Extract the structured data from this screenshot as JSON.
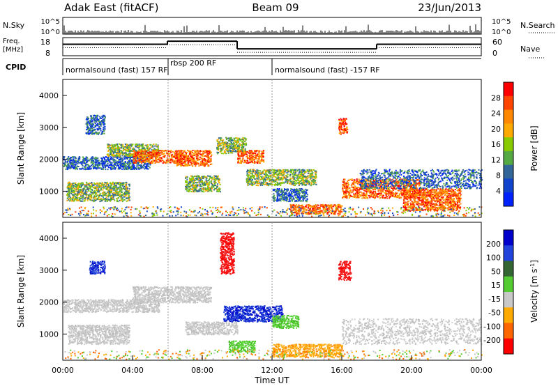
{
  "header": {
    "title": "Adak East (fitACF)",
    "beam": "Beam 09",
    "date": "23/Jun/2013"
  },
  "panels": {
    "nsky": {
      "label": "N.Sky",
      "right_label": "N.Search",
      "ticks_left": [
        "10^5",
        "10^0"
      ],
      "ticks_right": [
        "10^5",
        "10^0"
      ]
    },
    "freq": {
      "label_line1": "Freq.",
      "label_line2": "[MHz]",
      "right_label": "Nave",
      "ticks_left": [
        "18",
        "8"
      ],
      "ticks_right": [
        "60",
        "0"
      ],
      "freq_segments": [
        {
          "start": 0,
          "end": 6,
          "mhz": 15.5
        },
        {
          "start": 6,
          "end": 10,
          "mhz": 17.5
        },
        {
          "start": 10,
          "end": 18,
          "mhz": 12.5
        },
        {
          "start": 18,
          "end": 24,
          "mhz": 15.5
        }
      ]
    },
    "cpid": {
      "label": "CPID",
      "segments": [
        {
          "text": "normalsound (fast) 157 RF",
          "start": 0,
          "end": 6
        },
        {
          "text": "rbsp 200 RF",
          "start": 6,
          "end": 12
        },
        {
          "text": "normalsound (fast) -157 RF",
          "start": 12,
          "end": 24
        }
      ]
    }
  },
  "axes": {
    "x_ticks": [
      "00:00",
      "04:00",
      "08:00",
      "12:00",
      "16:00",
      "20:00",
      "00:00"
    ],
    "x_label": "Time UT",
    "y_label": "Slant Range [km]",
    "y_ticks": [
      "4000",
      "3000",
      "2000",
      "1000"
    ],
    "y_range_km": [
      180,
      4500
    ]
  },
  "power_scale": {
    "label": "Power [dB]",
    "ticks": [
      "28",
      "24",
      "20",
      "16",
      "12",
      "8",
      "4"
    ],
    "colors": [
      "#ff0000",
      "#ff4400",
      "#ff8800",
      "#ffaa00",
      "#88cc00",
      "#55aa44",
      "#336699",
      "#1144cc",
      "#0022ff"
    ]
  },
  "velocity_scale": {
    "label": "Velocity [m s",
    "label_sup": "-1",
    "label_end": "]",
    "ticks": [
      "200",
      "100",
      "50",
      "15",
      "-15",
      "-50",
      "-100",
      "-200"
    ],
    "colors": [
      "#0000cc",
      "#2244dd",
      "#336633",
      "#55cc33",
      "#c8c8c8",
      "#ffaa00",
      "#ff6600",
      "#ff0000"
    ]
  },
  "chart_data": {
    "type": "heatmap",
    "x_range_hours": [
      0,
      24
    ],
    "y_range_km": [
      180,
      4500
    ],
    "power_regions": [
      {
        "t0": 0.0,
        "t1": 5.0,
        "r0": 1700,
        "r1": 2100,
        "level": "low"
      },
      {
        "t0": 0.2,
        "t1": 3.8,
        "r0": 700,
        "r1": 1300,
        "level": "mid"
      },
      {
        "t0": 1.3,
        "t1": 2.4,
        "r0": 2800,
        "r1": 3400,
        "level": "low"
      },
      {
        "t0": 2.5,
        "t1": 5.5,
        "r0": 2100,
        "r1": 2500,
        "level": "mid"
      },
      {
        "t0": 4.0,
        "t1": 6.8,
        "r0": 1900,
        "r1": 2300,
        "level": "high"
      },
      {
        "t0": 6.5,
        "t1": 8.5,
        "r0": 1800,
        "r1": 2300,
        "level": "high"
      },
      {
        "t0": 7.0,
        "t1": 9.0,
        "r0": 1000,
        "r1": 1500,
        "level": "mid"
      },
      {
        "t0": 8.8,
        "t1": 10.5,
        "r0": 2200,
        "r1": 2700,
        "level": "mid"
      },
      {
        "t0": 10.0,
        "t1": 11.5,
        "r0": 1900,
        "r1": 2300,
        "level": "high"
      },
      {
        "t0": 10.5,
        "t1": 14.5,
        "r0": 1200,
        "r1": 1700,
        "level": "mid"
      },
      {
        "t0": 12.0,
        "t1": 14.0,
        "r0": 700,
        "r1": 1100,
        "level": "low"
      },
      {
        "t0": 13.0,
        "t1": 16.0,
        "r0": 300,
        "r1": 600,
        "level": "high"
      },
      {
        "t0": 15.8,
        "t1": 16.3,
        "r0": 2800,
        "r1": 3300,
        "level": "high"
      },
      {
        "t0": 16.0,
        "t1": 20.5,
        "r0": 800,
        "r1": 1400,
        "level": "high"
      },
      {
        "t0": 19.5,
        "t1": 22.8,
        "r0": 400,
        "r1": 1100,
        "level": "high"
      },
      {
        "t0": 17.0,
        "t1": 24.0,
        "r0": 1100,
        "r1": 1700,
        "level": "low"
      }
    ],
    "velocity_regions": [
      {
        "t0": 0.0,
        "t1": 5.5,
        "r0": 1700,
        "r1": 2100,
        "v": "gray"
      },
      {
        "t0": 0.3,
        "t1": 3.8,
        "r0": 700,
        "r1": 1300,
        "v": "gray"
      },
      {
        "t0": 1.5,
        "t1": 2.4,
        "r0": 2900,
        "r1": 3300,
        "v": "blue"
      },
      {
        "t0": 4.0,
        "t1": 8.5,
        "r0": 2000,
        "r1": 2500,
        "v": "gray"
      },
      {
        "t0": 7.0,
        "t1": 10.0,
        "r0": 1000,
        "r1": 1400,
        "v": "gray"
      },
      {
        "t0": 9.0,
        "t1": 9.8,
        "r0": 2900,
        "r1": 4200,
        "v": "red"
      },
      {
        "t0": 9.2,
        "t1": 12.6,
        "r0": 1400,
        "r1": 1900,
        "v": "blue"
      },
      {
        "t0": 9.5,
        "t1": 11.0,
        "r0": 450,
        "r1": 800,
        "v": "green"
      },
      {
        "t0": 12.0,
        "t1": 13.5,
        "r0": 1200,
        "r1": 1600,
        "v": "green"
      },
      {
        "t0": 15.8,
        "t1": 16.5,
        "r0": 2700,
        "r1": 3300,
        "v": "red"
      },
      {
        "t0": 16.0,
        "t1": 24.0,
        "r0": 700,
        "r1": 1500,
        "v": "gray"
      },
      {
        "t0": 12.0,
        "t1": 16.0,
        "r0": 300,
        "r1": 700,
        "v": "orange"
      }
    ]
  }
}
